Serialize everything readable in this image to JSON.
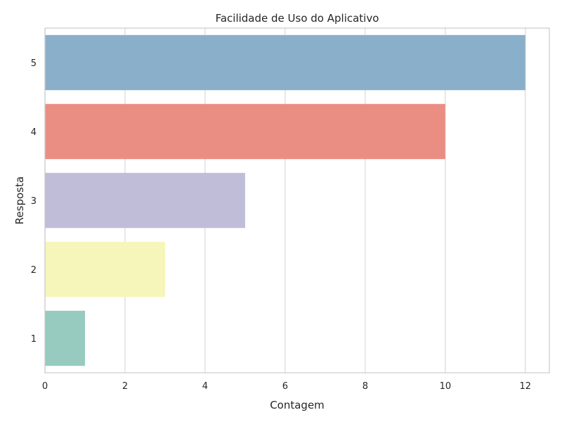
{
  "chart_data": {
    "type": "bar",
    "orientation": "horizontal",
    "title": "Facilidade de Uso do Aplicativo",
    "xlabel": "Contagem",
    "ylabel": "Resposta",
    "categories": [
      "5",
      "4",
      "3",
      "2",
      "1"
    ],
    "values": [
      12,
      10,
      5,
      3,
      1
    ],
    "colors": [
      "#8AAFCA",
      "#EA8E84",
      "#C0BDD8",
      "#F6F6BA",
      "#97CBBF"
    ],
    "xlim": [
      0,
      12.6
    ],
    "xticks": [
      0,
      2,
      4,
      6,
      8,
      10,
      12
    ],
    "grid": true
  }
}
